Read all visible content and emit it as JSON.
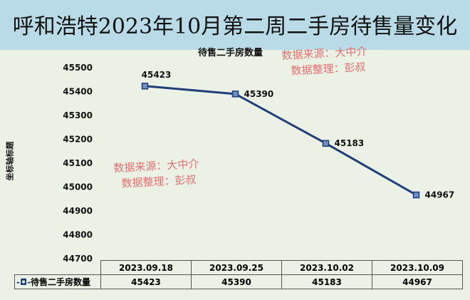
{
  "title": "呼和浩特2023年10月第二周二手房待售量变化",
  "watermark": {
    "line1": "数据来源：大中介",
    "line2": "数据整理：彭叔"
  },
  "chart_data": {
    "type": "line",
    "title": "待售二手房数量",
    "ylabel": "坐标轴标题",
    "xlabel": "",
    "categories": [
      "2023.09.18",
      "2023.09.25",
      "2023.10.02",
      "2023.10.09"
    ],
    "series": [
      {
        "name": "待售二手房数量",
        "values": [
          45423,
          45390,
          45183,
          44967
        ],
        "color": "#1f3f7a"
      }
    ],
    "ylim": [
      44700,
      45500
    ],
    "yticks": [
      45500,
      45400,
      45300,
      45200,
      45100,
      45000,
      44900,
      44800,
      44700
    ],
    "grid": false,
    "legend": "data-table"
  }
}
